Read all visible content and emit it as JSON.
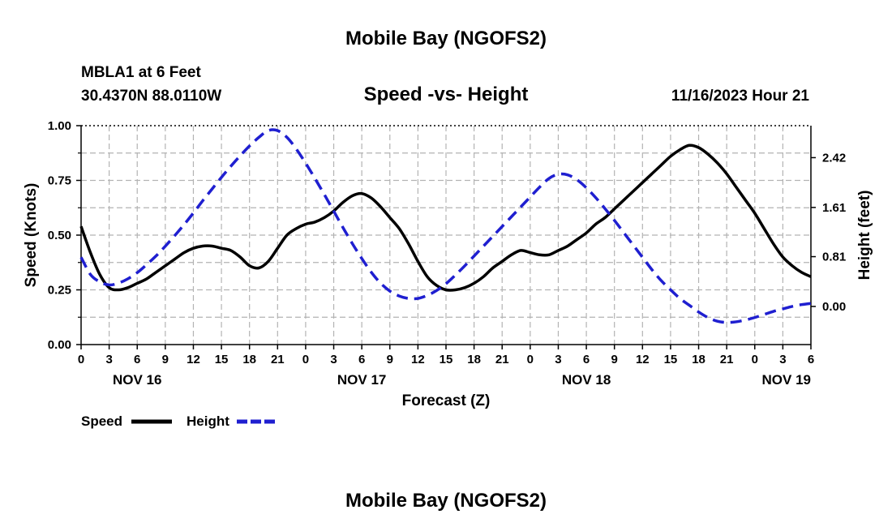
{
  "header": {
    "title": "Mobile Bay (NGOFS2)",
    "station": "MBLA1 at 6 Feet",
    "coords": "30.4370N  88.0110W",
    "subtitle": "Speed -vs- Height",
    "timestamp": "11/16/2023 Hour 21"
  },
  "footer": {
    "title": "Mobile Bay (NGOFS2)"
  },
  "chart_data": {
    "type": "line",
    "title": "Speed -vs- Height",
    "xlabel": "Forecast (Z)",
    "ylabel": "Speed (Knots)",
    "y2label": "Height (feet)",
    "xlim": [
      0,
      78
    ],
    "ylim": [
      0,
      1
    ],
    "y2lim": [
      -0.62,
      2.94
    ],
    "grid": true,
    "legend_position": "bottom-left",
    "x_tick_labels": [
      "0",
      "3",
      "6",
      "9",
      "12",
      "15",
      "18",
      "21",
      "0",
      "3",
      "6",
      "9",
      "12",
      "15",
      "18",
      "21",
      "0",
      "3",
      "6",
      "9",
      "12",
      "15",
      "18",
      "21",
      "0",
      "3",
      "6"
    ],
    "date_labels": [
      {
        "hour": 6,
        "label": "NOV 16"
      },
      {
        "hour": 30,
        "label": "NOV 17"
      },
      {
        "hour": 54,
        "label": "NOV 18"
      },
      {
        "hour": 78,
        "label": "NOV 19"
      }
    ],
    "y_ticks": [
      "0.00",
      "0.25",
      "0.50",
      "0.75",
      "1.00"
    ],
    "y_tick_values": [
      0,
      0.25,
      0.5,
      0.75,
      1.0
    ],
    "y2_ticks": [
      "0.00",
      "0.81",
      "1.61",
      "2.42"
    ],
    "y2_tick_values": [
      0,
      0.81,
      1.61,
      2.42
    ],
    "series": [
      {
        "name": "Speed",
        "axis": "left",
        "color": "#000000",
        "style": "solid",
        "x": [
          0,
          1,
          2,
          3,
          4,
          5,
          6,
          7,
          8,
          9,
          10,
          11,
          12,
          13,
          14,
          15,
          16,
          17,
          18,
          19,
          20,
          21,
          22,
          23,
          24,
          25,
          26,
          27,
          28,
          29,
          30,
          31,
          32,
          33,
          34,
          35,
          36,
          37,
          38,
          39,
          40,
          41,
          42,
          43,
          44,
          45,
          46,
          47,
          48,
          49,
          50,
          51,
          52,
          53,
          54,
          55,
          56,
          57,
          58,
          59,
          60,
          61,
          62,
          63,
          64,
          65,
          66,
          67,
          68,
          69,
          70,
          71,
          72,
          73,
          74,
          75,
          76,
          77,
          78
        ],
        "values": [
          0.54,
          0.42,
          0.32,
          0.26,
          0.25,
          0.26,
          0.28,
          0.3,
          0.33,
          0.36,
          0.39,
          0.42,
          0.44,
          0.45,
          0.45,
          0.44,
          0.43,
          0.4,
          0.36,
          0.35,
          0.38,
          0.44,
          0.5,
          0.53,
          0.55,
          0.56,
          0.58,
          0.61,
          0.65,
          0.68,
          0.69,
          0.67,
          0.63,
          0.58,
          0.53,
          0.46,
          0.38,
          0.31,
          0.27,
          0.25,
          0.25,
          0.26,
          0.28,
          0.31,
          0.35,
          0.38,
          0.41,
          0.43,
          0.42,
          0.41,
          0.41,
          0.43,
          0.45,
          0.48,
          0.51,
          0.55,
          0.58,
          0.62,
          0.66,
          0.7,
          0.74,
          0.78,
          0.82,
          0.86,
          0.89,
          0.91,
          0.9,
          0.87,
          0.83,
          0.78,
          0.72,
          0.66,
          0.6,
          0.53,
          0.46,
          0.4,
          0.36,
          0.33,
          0.31
        ]
      },
      {
        "name": "Height",
        "axis": "right",
        "color": "#1f1fd0",
        "style": "dashed",
        "x": [
          0,
          1,
          2,
          3,
          4,
          5,
          6,
          7,
          8,
          9,
          10,
          11,
          12,
          13,
          14,
          15,
          16,
          17,
          18,
          19,
          20,
          21,
          22,
          23,
          24,
          25,
          26,
          27,
          28,
          29,
          30,
          31,
          32,
          33,
          34,
          35,
          36,
          37,
          38,
          39,
          40,
          41,
          42,
          43,
          44,
          45,
          46,
          47,
          48,
          49,
          50,
          51,
          52,
          53,
          54,
          55,
          56,
          57,
          58,
          59,
          60,
          61,
          62,
          63,
          64,
          65,
          66,
          67,
          68,
          69,
          70,
          71,
          72,
          73,
          74,
          75,
          76,
          77,
          78
        ],
        "values": [
          0.8,
          0.52,
          0.4,
          0.35,
          0.38,
          0.45,
          0.55,
          0.68,
          0.82,
          0.98,
          1.15,
          1.33,
          1.52,
          1.72,
          1.91,
          2.1,
          2.28,
          2.45,
          2.61,
          2.75,
          2.86,
          2.86,
          2.75,
          2.56,
          2.33,
          2.08,
          1.82,
          1.55,
          1.28,
          1.02,
          0.78,
          0.56,
          0.38,
          0.25,
          0.17,
          0.13,
          0.13,
          0.18,
          0.26,
          0.37,
          0.51,
          0.66,
          0.82,
          0.98,
          1.14,
          1.3,
          1.46,
          1.62,
          1.78,
          1.94,
          2.08,
          2.15,
          2.14,
          2.06,
          1.93,
          1.77,
          1.59,
          1.4,
          1.2,
          1.0,
          0.8,
          0.6,
          0.42,
          0.27,
          0.13,
          0.02,
          -0.09,
          -0.18,
          -0.24,
          -0.26,
          -0.25,
          -0.22,
          -0.18,
          -0.13,
          -0.08,
          -0.04,
          0.0,
          0.03,
          0.05
        ]
      }
    ]
  },
  "legend": {
    "items": [
      {
        "label": "Speed",
        "color": "#000000",
        "style": "solid"
      },
      {
        "label": "Height",
        "color": "#1f1fd0",
        "style": "dashed"
      }
    ]
  }
}
